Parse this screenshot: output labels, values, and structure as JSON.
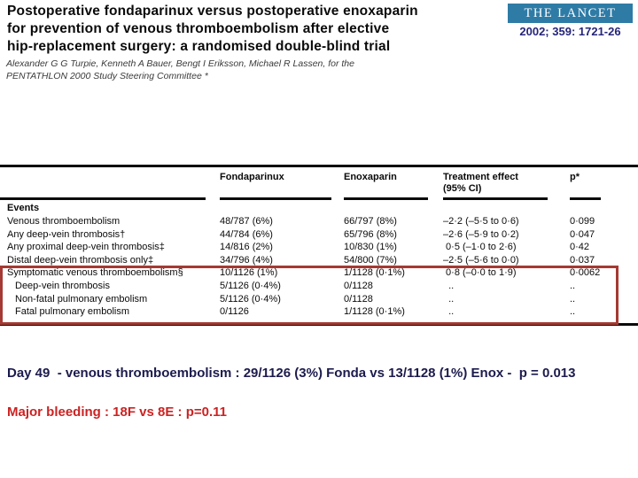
{
  "article": {
    "title_line1": "Postoperative fondaparinux versus postoperative enoxaparin",
    "title_line2": "for prevention of venous thromboembolism after elective",
    "title_line3": "hip-replacement surgery: a randomised double-blind trial",
    "authors_line1": "Alexander G G Turpie, Kenneth A Bauer, Bengt I Eriksson, Michael R Lassen, for the",
    "authors_line2": "PENTATHLON 2000 Study Steering Committee *"
  },
  "journal": {
    "name": "THE LANCET",
    "citation": "2002; 359: 1721-26"
  },
  "table": {
    "section": "Events",
    "col_headers": {
      "fondaparinux": "Fondaparinux",
      "enoxaparin": "Enoxaparin",
      "effect_line1": "Treatment effect",
      "effect_line2": "(95% CI)",
      "p": "p*"
    },
    "rows": [
      {
        "label": "Venous thromboembolism",
        "fonda": "48/787 (6%)",
        "enox": "66/797 (8%)",
        "effect": "–2·2 (–5·5 to 0·6)",
        "p": "0·099"
      },
      {
        "label": "Any deep-vein thrombosis†",
        "fonda": "44/784 (6%)",
        "enox": "65/796 (8%)",
        "effect": "–2·6 (–5·9 to 0·2)",
        "p": "0·047"
      },
      {
        "label": "Any proximal deep-vein thrombosis‡",
        "fonda": "14/816 (2%)",
        "enox": "10/830 (1%)",
        "effect": " 0·5 (–1·0 to 2·6)",
        "p": "0·42"
      },
      {
        "label": "Distal deep-vein thrombosis only‡",
        "fonda": "34/796 (4%)",
        "enox": "54/800 (7%)",
        "effect": "–2·5 (–5·6 to 0·0)",
        "p": "0·037"
      },
      {
        "label": "Symptomatic venous thromboembolism§",
        "fonda": "10/1126 (1%)",
        "enox": "1/1128 (0·1%)",
        "effect": " 0·8 (–0·0 to 1·9)",
        "p": "0·0062"
      },
      {
        "label": "Deep-vein thrombosis",
        "fonda": "5/1126 (0·4%)",
        "enox": "0/1128",
        "effect": "  ..",
        "p": ".."
      },
      {
        "label": "Non-fatal pulmonary embolism",
        "fonda": "5/1126 (0·4%)",
        "enox": "0/1128",
        "effect": "  ..",
        "p": ".."
      },
      {
        "label": "Fatal pulmonary embolism",
        "fonda": "0/1126",
        "enox": "1/1128 (0·1%)",
        "effect": "  ..",
        "p": ".."
      }
    ]
  },
  "annotations": {
    "day49": "Day 49  - venous thromboembolism : 29/1126 (3%) Fonda vs 13/1128 (1%) Enox -  p = 0.013",
    "major_bleeding": "Major bleeding : 18F vs 8E : p=0.11"
  },
  "colors": {
    "lancet_logo_bg": "#2e7ba6",
    "citation_text": "#26257a",
    "highlight_box_border": "#a43a33",
    "day49_text": "#1c1b4e",
    "major_bleeding_text": "#cc2222"
  }
}
